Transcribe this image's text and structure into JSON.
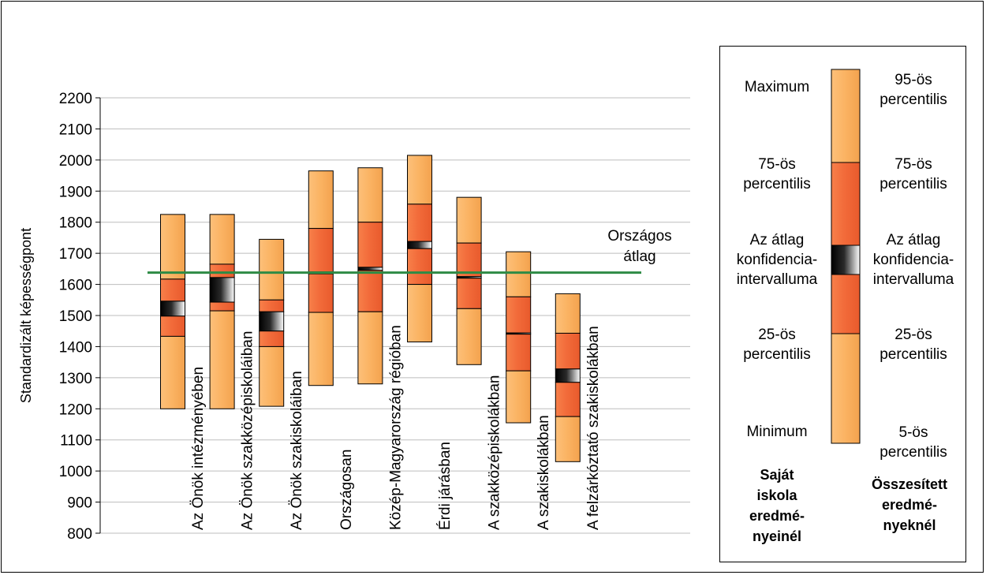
{
  "chart_data": {
    "type": "box",
    "ylabel": "Standardizált képességpont",
    "ylim": [
      800,
      2200
    ],
    "ytick_step": 100,
    "categories": [
      "Az Önök intézményében",
      "Az Önök szakközépiskoláiban",
      "Az Önök szakiskoláiban",
      "Országosan",
      "Közép-Magyarország régióban",
      "Érdi járásban",
      "A szakközépiskolákban",
      "A szakiskolákban",
      "A felzárkóztató szakiskolákban"
    ],
    "series": [
      {
        "name": "Az Önök intézményében",
        "low": 1200,
        "q1": 1433,
        "ci_low": 1498,
        "ci_high": 1546,
        "q3": 1617,
        "high": 1825
      },
      {
        "name": "Az Önök szakközépiskoláiban",
        "low": 1200,
        "q1": 1515,
        "ci_low": 1543,
        "ci_high": 1622,
        "q3": 1665,
        "high": 1825
      },
      {
        "name": "Az Önök szakiskoláiban",
        "low": 1208,
        "q1": 1400,
        "ci_low": 1450,
        "ci_high": 1512,
        "q3": 1550,
        "high": 1745
      },
      {
        "name": "Országosan",
        "low": 1275,
        "q1": 1510,
        "ci_low": 1634,
        "ci_high": 1640,
        "q3": 1780,
        "high": 1965
      },
      {
        "name": "Közép-Magyarország régióban",
        "low": 1280,
        "q1": 1512,
        "ci_low": 1645,
        "ci_high": 1655,
        "q3": 1800,
        "high": 1975
      },
      {
        "name": "Érdi járásban",
        "low": 1415,
        "q1": 1600,
        "ci_low": 1715,
        "ci_high": 1738,
        "q3": 1858,
        "high": 2015
      },
      {
        "name": "A szakközépiskolákban",
        "low": 1342,
        "q1": 1522,
        "ci_low": 1620,
        "ci_high": 1625,
        "q3": 1733,
        "high": 1880
      },
      {
        "name": "A szakiskolákban",
        "low": 1155,
        "q1": 1322,
        "ci_low": 1440,
        "ci_high": 1444,
        "q3": 1560,
        "high": 1705
      },
      {
        "name": "A felzárkóztató szakiskolákban",
        "low": 1030,
        "q1": 1175,
        "ci_low": 1285,
        "ci_high": 1328,
        "q3": 1443,
        "high": 1570
      }
    ],
    "reference_line": {
      "name": "Országos átlag",
      "value": 1638,
      "label_line1": "Országos",
      "label_line2": "átlag",
      "color": "#2e8b45"
    },
    "colors": {
      "outer": "#fbb464",
      "inner": "#f26b3a",
      "ci_dark": "#000000",
      "grid": "#bdbdbd"
    }
  },
  "legend": {
    "left_labels": {
      "maximum": "Maximum",
      "p75_1": "75-ös",
      "p75_2": "percentilis",
      "avg_1": "Az átlag",
      "avg_2": "konfidencia-",
      "avg_3": "intervalluma",
      "p25_1": "25-ös",
      "p25_2": "percentilis",
      "minimum": "Minimum"
    },
    "right_labels": {
      "p95_1": "95-ös",
      "p95_2": "percentilis",
      "p75_1": "75-ös",
      "p75_2": "percentilis",
      "avg_1": "Az átlag",
      "avg_2": "konfidencia-",
      "avg_3": "intervalluma",
      "p25_1": "25-ös",
      "p25_2": "percentilis",
      "p5_1": "5-ös",
      "p5_2": "percentilis"
    },
    "footer_left": {
      "l1": "Saját",
      "l2": "iskola",
      "l3": "eredmé-",
      "l4": "nyeinél"
    },
    "footer_right": {
      "l1": "Összesített",
      "l2": "eredmé-",
      "l3": "nyeknél"
    }
  }
}
